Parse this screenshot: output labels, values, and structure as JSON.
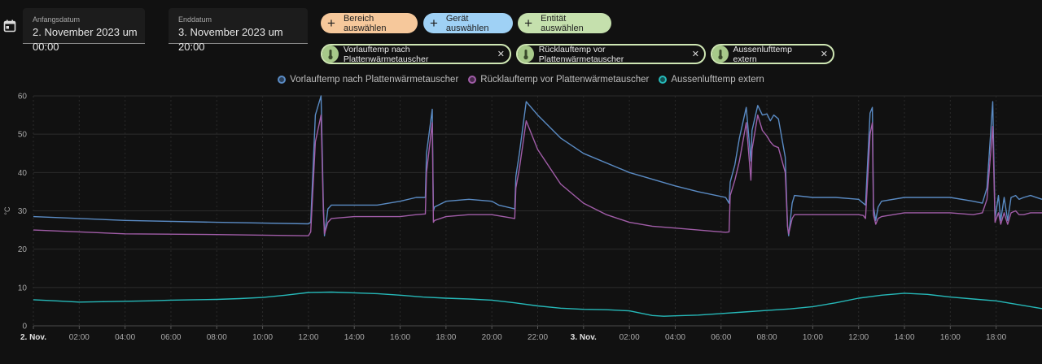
{
  "header": {
    "calendar_icon": "calendar-icon",
    "start": {
      "label": "Anfangsdatum",
      "value": "2. November 2023 um 00:00"
    },
    "end": {
      "label": "Enddatum",
      "value": "3. November 2023 um 20:00"
    }
  },
  "target_buttons": [
    {
      "label": "Bereich auswählen",
      "color": "#f6c89b",
      "icon": "plus-icon"
    },
    {
      "label": "Gerät auswählen",
      "color": "#9fd1f5",
      "icon": "plus-icon"
    },
    {
      "label": "Entität auswählen",
      "color": "#c5e0ad",
      "icon": "plus-icon"
    }
  ],
  "entity_chips": [
    {
      "label": "Vorlauftemp nach Plattenwärmetauscher",
      "icon": "thermometer-icon"
    },
    {
      "label": "Rücklauftemp vor Plattenwärmetauscher",
      "icon": "thermometer-icon"
    },
    {
      "label": "Aussenlufttemp extern",
      "icon": "thermometer-icon"
    }
  ],
  "chart_data": {
    "type": "line",
    "title": "",
    "xlabel": "",
    "ylabel": "°C",
    "ylim": [
      0,
      60
    ],
    "yticks": [
      "0",
      "10",
      "20",
      "30",
      "40",
      "50",
      "60"
    ],
    "xlim_hours": [
      0,
      44
    ],
    "xticks": [
      {
        "h": 0,
        "label": "2. Nov.",
        "bold": true
      },
      {
        "h": 2,
        "label": "02:00"
      },
      {
        "h": 4,
        "label": "04:00"
      },
      {
        "h": 6,
        "label": "06:00"
      },
      {
        "h": 8,
        "label": "08:00"
      },
      {
        "h": 10,
        "label": "10:00"
      },
      {
        "h": 12,
        "label": "12:00"
      },
      {
        "h": 14,
        "label": "14:00"
      },
      {
        "h": 16,
        "label": "16:00"
      },
      {
        "h": 18,
        "label": "18:00"
      },
      {
        "h": 20,
        "label": "20:00"
      },
      {
        "h": 22,
        "label": "22:00"
      },
      {
        "h": 24,
        "label": "3. Nov.",
        "bold": true
      },
      {
        "h": 26,
        "label": "02:00"
      },
      {
        "h": 28,
        "label": "04:00"
      },
      {
        "h": 30,
        "label": "06:00"
      },
      {
        "h": 32,
        "label": "08:00"
      },
      {
        "h": 34,
        "label": "10:00"
      },
      {
        "h": 36,
        "label": "12:00"
      },
      {
        "h": 38,
        "label": "14:00"
      },
      {
        "h": 40,
        "label": "16:00"
      },
      {
        "h": 42,
        "label": "18:00"
      }
    ],
    "grid": true,
    "legend_position": "top-center",
    "series": [
      {
        "name": "Vorlauftemp nach Plattenwärmetauscher",
        "color": "#5a8bc4",
        "points": [
          [
            0,
            28.5
          ],
          [
            4,
            27.5
          ],
          [
            8,
            27
          ],
          [
            12,
            26.6
          ],
          [
            12.1,
            27
          ],
          [
            12.3,
            55
          ],
          [
            12.55,
            60
          ],
          [
            12.65,
            32
          ],
          [
            12.7,
            23.5
          ],
          [
            12.85,
            30.5
          ],
          [
            13,
            31.5
          ],
          [
            14,
            31.5
          ],
          [
            15,
            31.5
          ],
          [
            16,
            32.5
          ],
          [
            16.7,
            33.5
          ],
          [
            17.1,
            33.5
          ],
          [
            17.15,
            45
          ],
          [
            17.4,
            56.5
          ],
          [
            17.45,
            30
          ],
          [
            17.5,
            31
          ],
          [
            18,
            32.5
          ],
          [
            19,
            33
          ],
          [
            20,
            32.5
          ],
          [
            20.3,
            31.5
          ],
          [
            21,
            30.5
          ],
          [
            21.05,
            39
          ],
          [
            21.2,
            45
          ],
          [
            21.5,
            58.5
          ],
          [
            22,
            55
          ],
          [
            23,
            49
          ],
          [
            24,
            45
          ],
          [
            26,
            40
          ],
          [
            28,
            36.5
          ],
          [
            29,
            35
          ],
          [
            30.2,
            33.5
          ],
          [
            30.35,
            32
          ],
          [
            30.4,
            37.5
          ],
          [
            30.6,
            42
          ],
          [
            30.8,
            49
          ],
          [
            31.1,
            57
          ],
          [
            31.3,
            43
          ],
          [
            31.35,
            51
          ],
          [
            31.6,
            57.5
          ],
          [
            31.8,
            55
          ],
          [
            32,
            55.3
          ],
          [
            32.15,
            53.5
          ],
          [
            32.3,
            55
          ],
          [
            32.5,
            54
          ],
          [
            32.8,
            44
          ],
          [
            32.9,
            26
          ],
          [
            32.95,
            23.5
          ],
          [
            33.1,
            32
          ],
          [
            33.2,
            34
          ],
          [
            34,
            33.5
          ],
          [
            35,
            33.5
          ],
          [
            36,
            33
          ],
          [
            36.2,
            32
          ],
          [
            36.3,
            31.5
          ],
          [
            36.5,
            55.5
          ],
          [
            36.6,
            57
          ],
          [
            36.65,
            31
          ],
          [
            36.75,
            27.5
          ],
          [
            36.85,
            31
          ],
          [
            37,
            32.5
          ],
          [
            38,
            33.5
          ],
          [
            39,
            33.5
          ],
          [
            40,
            33.5
          ],
          [
            41,
            32.5
          ],
          [
            41.4,
            32
          ],
          [
            41.6,
            36
          ],
          [
            41.85,
            58.5
          ],
          [
            41.95,
            28
          ],
          [
            42.1,
            34
          ],
          [
            42.2,
            27.5
          ],
          [
            42.35,
            33.5
          ],
          [
            42.5,
            27.5
          ],
          [
            42.65,
            33.5
          ],
          [
            42.85,
            34
          ],
          [
            43,
            33
          ],
          [
            43.2,
            33.5
          ],
          [
            43.5,
            34
          ],
          [
            44,
            33
          ]
        ]
      },
      {
        "name": "Rücklauftemp vor Plattenwärmetauscher",
        "color": "#a15da8",
        "points": [
          [
            0,
            25
          ],
          [
            4,
            24
          ],
          [
            8,
            23.8
          ],
          [
            12,
            23.5
          ],
          [
            12.1,
            24.5
          ],
          [
            12.3,
            48
          ],
          [
            12.55,
            55
          ],
          [
            12.65,
            30
          ],
          [
            12.7,
            24
          ],
          [
            12.85,
            27
          ],
          [
            13,
            28
          ],
          [
            14,
            28.5
          ],
          [
            16,
            28.5
          ],
          [
            16.7,
            29
          ],
          [
            17.1,
            29.2
          ],
          [
            17.15,
            40
          ],
          [
            17.4,
            53
          ],
          [
            17.45,
            27
          ],
          [
            17.5,
            27.5
          ],
          [
            18,
            28.5
          ],
          [
            19,
            29
          ],
          [
            20,
            29
          ],
          [
            20.5,
            28.5
          ],
          [
            21,
            28
          ],
          [
            21.05,
            36
          ],
          [
            21.2,
            41
          ],
          [
            21.5,
            53.5
          ],
          [
            22,
            46
          ],
          [
            23,
            37
          ],
          [
            24,
            32
          ],
          [
            25,
            29
          ],
          [
            26,
            27
          ],
          [
            27,
            26
          ],
          [
            28,
            25.5
          ],
          [
            30.2,
            24.4
          ],
          [
            30.35,
            24.5
          ],
          [
            30.4,
            34
          ],
          [
            30.6,
            38
          ],
          [
            30.8,
            43
          ],
          [
            31.1,
            53
          ],
          [
            31.3,
            38
          ],
          [
            31.35,
            46
          ],
          [
            31.6,
            55
          ],
          [
            31.8,
            51
          ],
          [
            32,
            49.5
          ],
          [
            32.15,
            48
          ],
          [
            32.3,
            47
          ],
          [
            32.5,
            46.5
          ],
          [
            32.8,
            40
          ],
          [
            32.9,
            26
          ],
          [
            32.95,
            24
          ],
          [
            33.1,
            28
          ],
          [
            33.2,
            29
          ],
          [
            34,
            29
          ],
          [
            35,
            29
          ],
          [
            36,
            29
          ],
          [
            36.2,
            28.8
          ],
          [
            36.3,
            28
          ],
          [
            36.5,
            50
          ],
          [
            36.6,
            53
          ],
          [
            36.65,
            29
          ],
          [
            36.75,
            26.5
          ],
          [
            36.85,
            28
          ],
          [
            37,
            28.5
          ],
          [
            38,
            29.5
          ],
          [
            39,
            29.5
          ],
          [
            40,
            29.5
          ],
          [
            41,
            29
          ],
          [
            41.4,
            29.5
          ],
          [
            41.6,
            33
          ],
          [
            41.85,
            52
          ],
          [
            41.95,
            27
          ],
          [
            42.1,
            29.5
          ],
          [
            42.2,
            26.5
          ],
          [
            42.35,
            29.5
          ],
          [
            42.5,
            26.5
          ],
          [
            42.65,
            29.5
          ],
          [
            42.85,
            30
          ],
          [
            43,
            29
          ],
          [
            43.2,
            29
          ],
          [
            43.5,
            29.5
          ],
          [
            44,
            29.5
          ]
        ]
      },
      {
        "name": "Aussenlufttemp extern",
        "color": "#26b9b9",
        "points": [
          [
            0,
            6.8
          ],
          [
            1,
            6.5
          ],
          [
            2,
            6.2
          ],
          [
            3,
            6.3
          ],
          [
            4,
            6.4
          ],
          [
            5,
            6.5
          ],
          [
            6,
            6.7
          ],
          [
            7,
            6.8
          ],
          [
            8,
            6.9
          ],
          [
            9,
            7.1
          ],
          [
            10,
            7.4
          ],
          [
            11,
            8
          ],
          [
            12,
            8.7
          ],
          [
            13,
            8.8
          ],
          [
            14,
            8.6
          ],
          [
            15,
            8.4
          ],
          [
            16,
            8
          ],
          [
            17,
            7.5
          ],
          [
            18,
            7.2
          ],
          [
            19,
            7
          ],
          [
            20,
            6.7
          ],
          [
            21,
            6
          ],
          [
            22,
            5.2
          ],
          [
            23,
            4.6
          ],
          [
            24,
            4.3
          ],
          [
            25,
            4.2
          ],
          [
            26,
            3.9
          ],
          [
            27,
            2.7
          ],
          [
            27.5,
            2.5
          ],
          [
            28,
            2.6
          ],
          [
            29,
            2.8
          ],
          [
            30,
            3.2
          ],
          [
            31,
            3.6
          ],
          [
            32,
            4
          ],
          [
            33,
            4.4
          ],
          [
            34,
            5
          ],
          [
            35,
            6
          ],
          [
            36,
            7.2
          ],
          [
            37,
            8
          ],
          [
            38,
            8.5
          ],
          [
            39,
            8.2
          ],
          [
            40,
            7.5
          ],
          [
            41,
            7
          ],
          [
            42,
            6.5
          ],
          [
            43,
            5.5
          ],
          [
            44,
            4.5
          ]
        ]
      }
    ]
  }
}
